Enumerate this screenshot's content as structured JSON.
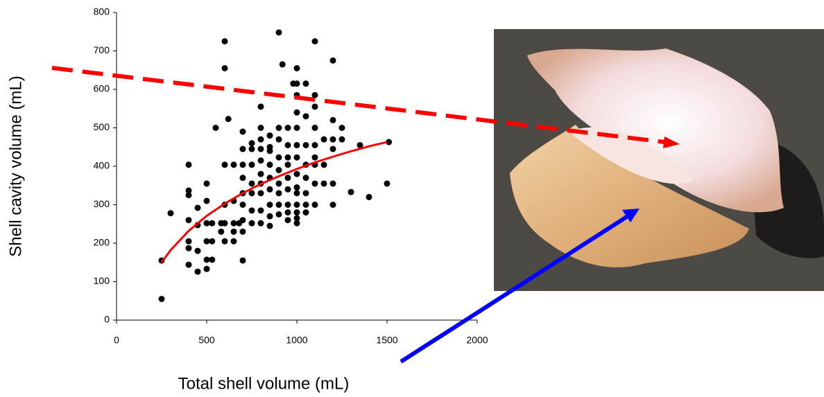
{
  "chart_data": {
    "type": "scatter",
    "x_label": "Total shell volume (mL)",
    "y_label": "Shell cavity volume (mL)",
    "xlim": [
      0,
      2000
    ],
    "xticks": [
      0,
      500,
      1000,
      1500,
      2000
    ],
    "ylim": [
      0,
      800
    ],
    "yticks": [
      0,
      100,
      200,
      300,
      400,
      500,
      600,
      700,
      800
    ],
    "grid": false,
    "series": [
      {
        "mode": "markers",
        "color": "#000000",
        "x": [
          250,
          250,
          300,
          400,
          400,
          400,
          400,
          400,
          400,
          400,
          450,
          450,
          450,
          450,
          500,
          500,
          500,
          500,
          500,
          500,
          530,
          530,
          530,
          550,
          580,
          580,
          600,
          600,
          600,
          600,
          600,
          600,
          620,
          650,
          650,
          650,
          650,
          650,
          680,
          700,
          700,
          700,
          700,
          700,
          700,
          700,
          700,
          700,
          750,
          750,
          750,
          750,
          750,
          750,
          750,
          800,
          800,
          800,
          800,
          800,
          800,
          800,
          800,
          800,
          800,
          850,
          850,
          850,
          850,
          850,
          850,
          850,
          850,
          850,
          900,
          900,
          900,
          900,
          900,
          900,
          900,
          900,
          900,
          920,
          950,
          950,
          950,
          950,
          950,
          950,
          950,
          950,
          950,
          980,
          1000,
          1000,
          1000,
          1000,
          1000,
          1000,
          1000,
          1000,
          1000,
          1000,
          1000,
          1000,
          1000,
          1000,
          1050,
          1050,
          1050,
          1050,
          1050,
          1050,
          1050,
          1050,
          1100,
          1100,
          1100,
          1100,
          1100,
          1100,
          1100,
          1100,
          1100,
          1150,
          1150,
          1150,
          1200,
          1200,
          1200,
          1200,
          1200,
          1200,
          1250,
          1250,
          1300,
          1350,
          1400,
          1500,
          1510
        ],
        "values": [
          55,
          155,
          278,
          404,
          337,
          325,
          260,
          205,
          187,
          144,
          292,
          247,
          180,
          126,
          355,
          310,
          252,
          205,
          157,
          133,
          252,
          205,
          157,
          500,
          252,
          230,
          725,
          655,
          404,
          300,
          252,
          205,
          523,
          404,
          310,
          252,
          205,
          230,
          252,
          490,
          445,
          404,
          370,
          330,
          300,
          260,
          230,
          155,
          460,
          445,
          404,
          355,
          330,
          285,
          252,
          555,
          500,
          470,
          445,
          415,
          380,
          355,
          330,
          285,
          252,
          480,
          450,
          440,
          404,
          370,
          340,
          300,
          270,
          245,
          748,
          500,
          470,
          423,
          390,
          355,
          330,
          300,
          275,
          665,
          500,
          455,
          423,
          404,
          370,
          340,
          300,
          280,
          260,
          615,
          655,
          615,
          585,
          540,
          500,
          455,
          423,
          380,
          345,
          330,
          300,
          280,
          265,
          252,
          615,
          530,
          455,
          404,
          370,
          330,
          300,
          280,
          725,
          585,
          555,
          500,
          455,
          423,
          404,
          355,
          300,
          470,
          404,
          355,
          675,
          520,
          470,
          445,
          355,
          300,
          500,
          470,
          333,
          455,
          320,
          355,
          463
        ]
      },
      {
        "mode": "line",
        "color": "#ff0000",
        "x": [
          250,
          300,
          400,
          500,
          600,
          700,
          800,
          900,
          1000,
          1100,
          1200,
          1300,
          1400,
          1500
        ],
        "values": [
          150,
          182,
          232,
          271,
          303,
          330,
          354,
          374,
          393,
          410,
          425,
          439,
          452,
          463
        ]
      }
    ]
  }
}
